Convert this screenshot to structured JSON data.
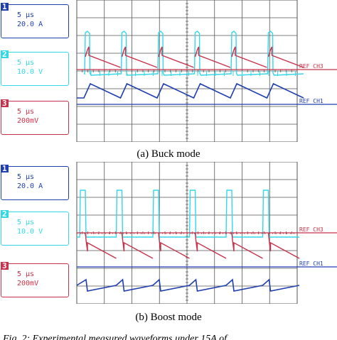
{
  "colors": {
    "ch1": "#1f3fb0",
    "ch2": "#33d8e8",
    "ch3": "#c8324a",
    "grid": "#555555"
  },
  "panels": [
    {
      "caption": "(a) Buck mode",
      "channels": [
        {
          "num": "1",
          "line1": "5 μs",
          "line2": "20.0 A",
          "color_key": "ch1"
        },
        {
          "num": "2",
          "line1": "5 μs",
          "line2": "10.0 V",
          "color_key": "ch2"
        },
        {
          "num": "3",
          "line1": "5 μs",
          "line2": "200mV",
          "color_key": "ch3"
        }
      ],
      "ref_labels": [
        "REF_CH3",
        "REF_CH1"
      ]
    },
    {
      "caption": "(b) Boost mode",
      "channels": [
        {
          "num": "1",
          "line1": "5 μs",
          "line2": "20.0 A",
          "color_key": "ch1"
        },
        {
          "num": "2",
          "line1": "5 μs",
          "line2": "10.0 V",
          "color_key": "ch2"
        },
        {
          "num": "3",
          "line1": "5 μs",
          "line2": "200mV",
          "color_key": "ch3"
        }
      ],
      "ref_labels": [
        "REF_CH3",
        "REF_CH1"
      ]
    }
  ],
  "footer_text": "Fig. 2: Experimental measured waveforms under 15A of"
}
